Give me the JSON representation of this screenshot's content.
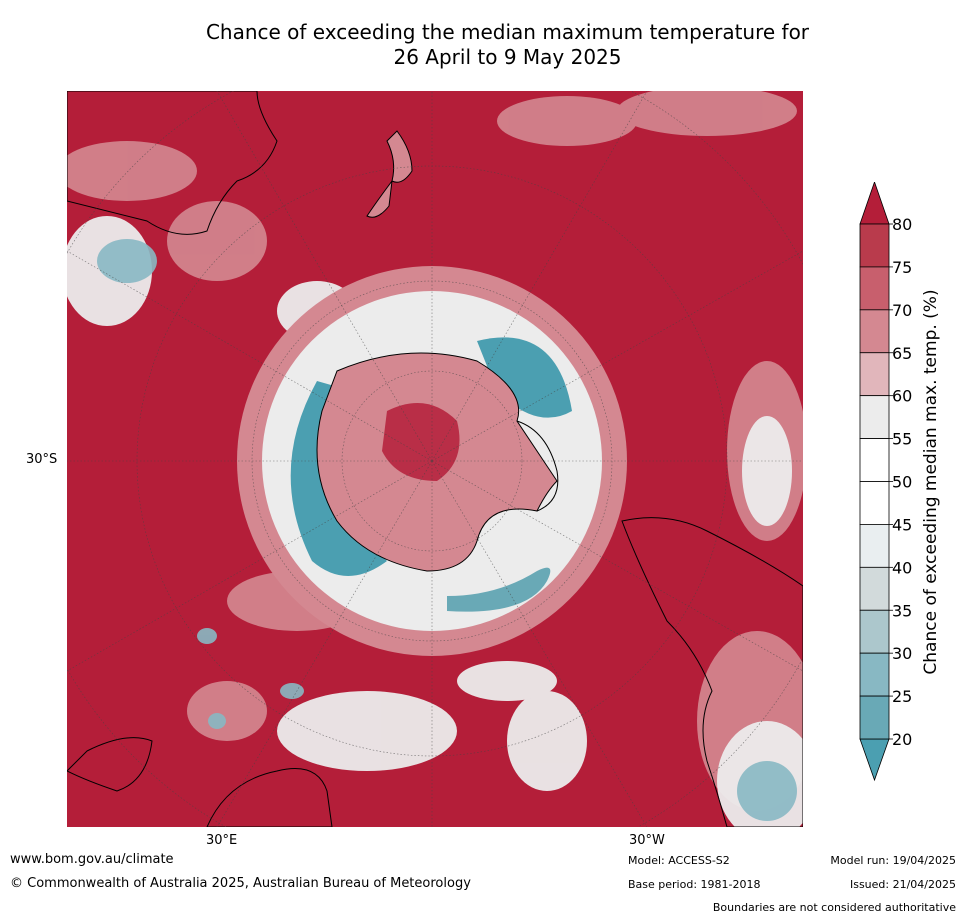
{
  "title": {
    "line1": "Chance of exceeding the median maximum temperature for",
    "line2": "26 April to 9 May 2025"
  },
  "map": {
    "projection": "south-polar-stereographic",
    "lat_labels": [
      "30°S"
    ],
    "lon_labels": [
      "30°E",
      "30°W"
    ],
    "dominant_category": "80",
    "landmasses_visible": [
      "Australia",
      "New Zealand",
      "Antarctica",
      "South America",
      "Africa",
      "Madagascar"
    ]
  },
  "colorbar": {
    "label": "Chance of exceeding median max. temp. (%)",
    "ticks": [
      "80",
      "75",
      "70",
      "65",
      "60",
      "55",
      "50",
      "45",
      "40",
      "35",
      "30",
      "25",
      "20"
    ],
    "bins": [
      {
        "from": 75,
        "to": 80,
        "color": "#b93b4c"
      },
      {
        "from": 70,
        "to": 75,
        "color": "#c85f6d"
      },
      {
        "from": 65,
        "to": 70,
        "color": "#d48891"
      },
      {
        "from": 60,
        "to": 65,
        "color": "#e1b6bb"
      },
      {
        "from": 55,
        "to": 60,
        "color": "#ececec"
      },
      {
        "from": 50,
        "to": 55,
        "color": "#ffffff"
      },
      {
        "from": 45,
        "to": 50,
        "color": "#ffffff"
      },
      {
        "from": 40,
        "to": 45,
        "color": "#e9eef0"
      },
      {
        "from": 35,
        "to": 40,
        "color": "#d2dadb"
      },
      {
        "from": 30,
        "to": 35,
        "color": "#acc7cc"
      },
      {
        "from": 25,
        "to": 30,
        "color": "#88b8c3"
      },
      {
        "from": 20,
        "to": 25,
        "color": "#69a9b6"
      }
    ],
    "over_color": "#b41e39",
    "under_color": "#4b9fb1"
  },
  "colors": {
    "above_80": "#b41e39",
    "coast": "#000000"
  },
  "footer": {
    "url": "www.bom.gov.au/climate",
    "copyright": "© Commonwealth of Australia 2025, Australian Bureau of Meteorology",
    "model": "Model: ACCESS-S2",
    "base_period": "Base period: 1981-2018",
    "model_run": "Model run: 19/04/2025",
    "issued": "Issued: 21/04/2025",
    "disclaimer": "Boundaries are not considered authoritative"
  }
}
